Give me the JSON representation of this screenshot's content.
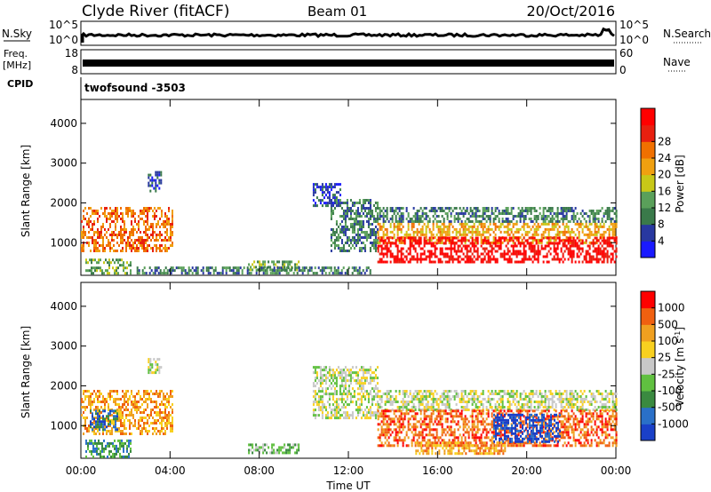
{
  "header": {
    "station": "Clyde River (fitACF)",
    "beam": "Beam 01",
    "date": "20/Oct/2016"
  },
  "panels": {
    "nsky": {
      "label": "N.Sky",
      "tick_top": "10^5",
      "tick_bottom": "10^0"
    },
    "nsearch": {
      "label": "N.Search",
      "tick_top": "10^5",
      "tick_bottom": "10^0"
    },
    "freq": {
      "label_top": "Freq.",
      "label_bottom": "[MHz]",
      "tick_top": "18",
      "tick_bottom": "8"
    },
    "nave": {
      "label": "Nave",
      "tick_top": "60",
      "tick_bottom": "0"
    },
    "cpid": {
      "label": "CPID",
      "value": "twofsound -3503"
    }
  },
  "chart_data": [
    {
      "type": "heatmap",
      "panel": "power",
      "xlabel": "",
      "ylabel": "Slant Range [km]",
      "x_range_hours": [
        0,
        24
      ],
      "ylim": [
        180,
        4600
      ],
      "y_ticks": [
        1000,
        2000,
        3000,
        4000
      ],
      "colorbar": {
        "label": "Power [dB]",
        "ticks": [
          "4",
          "8",
          "12",
          "16",
          "20",
          "24",
          "28"
        ],
        "colors": [
          "#1a1aff",
          "#2838a0",
          "#3a7a4a",
          "#5aa05a",
          "#c8c818",
          "#f0a010",
          "#f07000",
          "#e82010",
          "#ff0000"
        ]
      },
      "regions": [
        {
          "t": [
            0.0,
            4.1
          ],
          "r": [
            800,
            1900
          ],
          "level": 6
        },
        {
          "t": [
            0.2,
            2.2
          ],
          "r": [
            200,
            600
          ],
          "level": 3
        },
        {
          "t": [
            3.0,
            3.6
          ],
          "r": [
            2300,
            2800
          ],
          "level": 1
        },
        {
          "t": [
            7.5,
            9.8
          ],
          "r": [
            300,
            550
          ],
          "level": 3
        },
        {
          "t": [
            10.4,
            11.6
          ],
          "r": [
            1900,
            2500
          ],
          "level": 1
        },
        {
          "t": [
            11.2,
            13.3
          ],
          "r": [
            800,
            2100
          ],
          "level": 2
        },
        {
          "t": [
            13.3,
            24.0
          ],
          "r": [
            1500,
            1900
          ],
          "level": 2
        },
        {
          "t": [
            13.3,
            24.0
          ],
          "r": [
            1000,
            1500
          ],
          "level": 5
        },
        {
          "t": [
            13.3,
            24.0
          ],
          "r": [
            500,
            1150
          ],
          "level": 8
        },
        {
          "t": [
            2.5,
            13.0
          ],
          "r": [
            200,
            400
          ],
          "level": 2
        }
      ]
    },
    {
      "type": "heatmap",
      "panel": "velocity",
      "xlabel": "Time UT",
      "ylabel": "Slant Range [km]",
      "x_range_hours": [
        0,
        24
      ],
      "x_ticks": [
        "00:00",
        "04:00",
        "08:00",
        "12:00",
        "16:00",
        "20:00",
        "00:00"
      ],
      "ylim": [
        180,
        4600
      ],
      "y_ticks": [
        1000,
        2000,
        3000,
        4000
      ],
      "colorbar": {
        "label": "Velocity [m s^-1]",
        "ticks": [
          "1000",
          "500",
          "100",
          "25",
          "-25",
          "-100",
          "-500",
          "-1000"
        ],
        "colors": [
          "#1a40c8",
          "#2a70c8",
          "#3a8a40",
          "#60c040",
          "#c8c8c8",
          "#f8d020",
          "#f0a020",
          "#f06010",
          "#ff0000"
        ]
      },
      "regions": [
        {
          "t": [
            0.0,
            4.1
          ],
          "r": [
            800,
            1900
          ],
          "level": 6
        },
        {
          "t": [
            0.4,
            1.6
          ],
          "r": [
            900,
            1400
          ],
          "level": 1
        },
        {
          "t": [
            0.2,
            2.2
          ],
          "r": [
            200,
            650
          ],
          "level": 2
        },
        {
          "t": [
            3.0,
            3.6
          ],
          "r": [
            2300,
            2700
          ],
          "level": 4
        },
        {
          "t": [
            7.5,
            9.8
          ],
          "r": [
            300,
            550
          ],
          "level": 3
        },
        {
          "t": [
            10.4,
            13.3
          ],
          "r": [
            1200,
            2500
          ],
          "level": 4
        },
        {
          "t": [
            13.3,
            24.0
          ],
          "r": [
            1400,
            1900
          ],
          "level": 4
        },
        {
          "t": [
            13.3,
            24.0
          ],
          "r": [
            500,
            1400
          ],
          "level": 7
        },
        {
          "t": [
            18.5,
            21.5
          ],
          "r": [
            600,
            1300
          ],
          "level": 0
        },
        {
          "t": [
            15.0,
            19.0
          ],
          "r": [
            300,
            600
          ],
          "level": 6
        }
      ]
    }
  ]
}
